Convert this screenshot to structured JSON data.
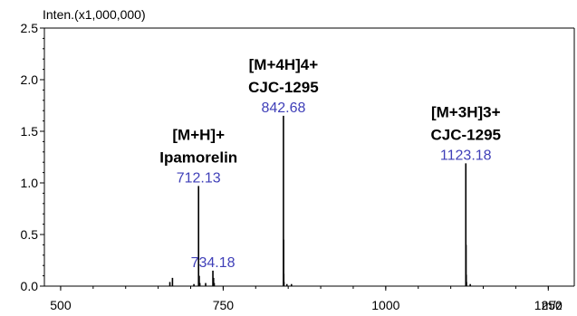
{
  "chart_data": {
    "type": "bar",
    "title": "",
    "xlabel": "m/z",
    "ylabel": "Inten.(x1,000,000)",
    "xlim": [
      475,
      1290
    ],
    "ylim": [
      0,
      2.5
    ],
    "x_ticks": [
      {
        "value": 500,
        "label": "500"
      },
      {
        "value": 750,
        "label": "750"
      },
      {
        "value": 1000,
        "label": "1000"
      },
      {
        "value": 1250,
        "label": "1250"
      }
    ],
    "y_ticks": [
      {
        "value": 0,
        "label": "0.0"
      },
      {
        "value": 0.5,
        "label": "0.5"
      },
      {
        "value": 1.0,
        "label": "1.0"
      },
      {
        "value": 1.5,
        "label": "1.5"
      },
      {
        "value": 2.0,
        "label": "2.0"
      },
      {
        "value": 2.5,
        "label": "2.5"
      }
    ],
    "peaks": [
      {
        "x": 668.0,
        "y": 0.04
      },
      {
        "x": 672.0,
        "y": 0.08
      },
      {
        "x": 705.0,
        "y": 0.02
      },
      {
        "x": 712.13,
        "y": 0.97
      },
      {
        "x": 713.1,
        "y": 0.1
      },
      {
        "x": 714.1,
        "y": 0.03
      },
      {
        "x": 723.0,
        "y": 0.03
      },
      {
        "x": 734.18,
        "y": 0.15
      },
      {
        "x": 735.2,
        "y": 0.08
      },
      {
        "x": 736.2,
        "y": 0.03
      },
      {
        "x": 842.68,
        "y": 1.65
      },
      {
        "x": 842.93,
        "y": 0.45
      },
      {
        "x": 843.18,
        "y": 0.12
      },
      {
        "x": 843.43,
        "y": 0.04
      },
      {
        "x": 848.0,
        "y": 0.02
      },
      {
        "x": 855.0,
        "y": 0.02
      },
      {
        "x": 1123.18,
        "y": 1.19
      },
      {
        "x": 1123.51,
        "y": 0.4
      },
      {
        "x": 1123.84,
        "y": 0.11
      },
      {
        "x": 1124.17,
        "y": 0.04
      },
      {
        "x": 1130.0,
        "y": 0.02
      }
    ],
    "peak_labels": [
      {
        "text": "712.13",
        "x": 712.13
      },
      {
        "text": "734.18",
        "x": 734.18
      },
      {
        "text": "842.68",
        "x": 842.68
      },
      {
        "text": "1123.18",
        "x": 1123.18
      }
    ],
    "annotations": [
      {
        "lines": [
          "[M+H]+",
          "Ipamorelin"
        ],
        "x": 712.13
      },
      {
        "lines": [
          "[M+4H]4+",
          "CJC-1295"
        ],
        "x": 842.68
      },
      {
        "lines": [
          "[M+3H]3+",
          "CJC-1295"
        ],
        "x": 1123.18
      }
    ],
    "grid": false,
    "colors": {
      "peaks": "#000000",
      "peak_labels": "#3f3fb8",
      "axes": "#000000"
    }
  }
}
